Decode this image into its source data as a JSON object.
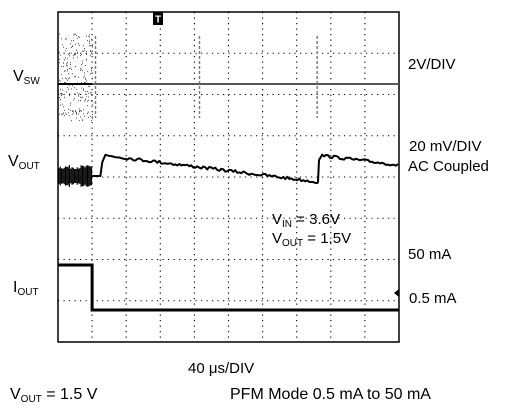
{
  "channels": {
    "sw": {
      "name": "V",
      "sub": "SW",
      "scale": "2V/DIV"
    },
    "out": {
      "name": "V",
      "sub": "OUT",
      "scale_1": "20 mV/DIV",
      "scale_2": "AC Coupled"
    },
    "iout": {
      "name": "I",
      "sub": "OUT",
      "level_high": "50 mA",
      "level_low": "0.5 mA"
    }
  },
  "annotation": {
    "vin_name": "V",
    "vin_sub": "IN",
    "vin_value": " = 3.6V",
    "vout_name": "V",
    "vout_sub": "OUT",
    "vout_value": " = 1.5V"
  },
  "timebase": "40 μs/DIV",
  "trigger_marker": "T",
  "footer": {
    "left_name": "V",
    "left_sub": "OUT",
    "left_value": " = 1.5 V",
    "right": "PFM Mode 0.5 mA to 50 mA"
  },
  "chart_data": {
    "type": "line",
    "x_unit": "μs",
    "x_per_div": 40,
    "x_divisions": 10,
    "y_divisions": 8,
    "load_step_time": 40,
    "series": [
      {
        "name": "VSW",
        "scale": "2V/DIV",
        "segments": [
          {
            "x_from": 0,
            "x_to": 40,
            "behavior": "continuous switching"
          },
          {
            "x_from": 40,
            "x_to": 400,
            "behavior": "idle, isolated switching bursts",
            "bursts_at": [
              44,
              166,
              304
            ]
          }
        ]
      },
      {
        "name": "VOUT",
        "scale": "20 mV/DIV",
        "coupling": "AC",
        "segments": [
          {
            "x_from": 0,
            "x_to": 40,
            "behavior": "ripple"
          },
          {
            "x_from": 40,
            "x_to": 400,
            "behavior": "sawtooth ramp-down with steps",
            "steps_at": [
              52,
              305
            ]
          }
        ]
      },
      {
        "name": "IOUT",
        "segments": [
          {
            "x_from": 0,
            "x_to": 40,
            "value": 50,
            "unit": "mA"
          },
          {
            "x_from": 40,
            "x_to": 400,
            "value": 0.5,
            "unit": "mA"
          }
        ]
      }
    ]
  }
}
